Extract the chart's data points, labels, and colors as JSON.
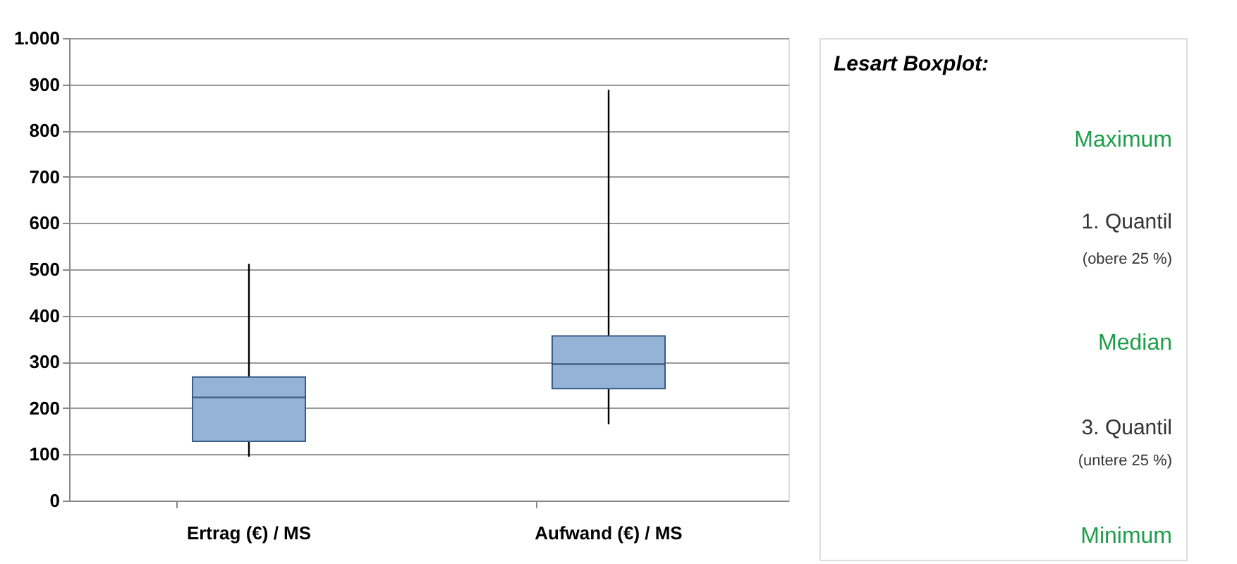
{
  "chart_data": {
    "type": "box",
    "categories": [
      "Ertrag (€) / MS",
      "Aufwand (€) / MS"
    ],
    "boxes": [
      {
        "low": 95,
        "q1": 128,
        "median": 223,
        "q3": 267,
        "high": 512
      },
      {
        "low": 165,
        "q1": 242,
        "median": 295,
        "q3": 356,
        "high": 888
      }
    ],
    "color": "#95b3d7",
    "ylim": [
      0,
      1000
    ],
    "yticks": [
      0,
      100,
      200,
      300,
      400,
      500,
      600,
      700,
      800,
      900,
      {
        "value": 1000,
        "label": "1.000"
      }
    ],
    "grid": "y",
    "annotations": [
      "Lesart Boxplot:",
      "Maximum",
      "1. Quantil",
      "(obere 25 %)",
      "Median",
      "3. Quantil",
      "(untere 25 %)",
      "Minimum"
    ]
  }
}
